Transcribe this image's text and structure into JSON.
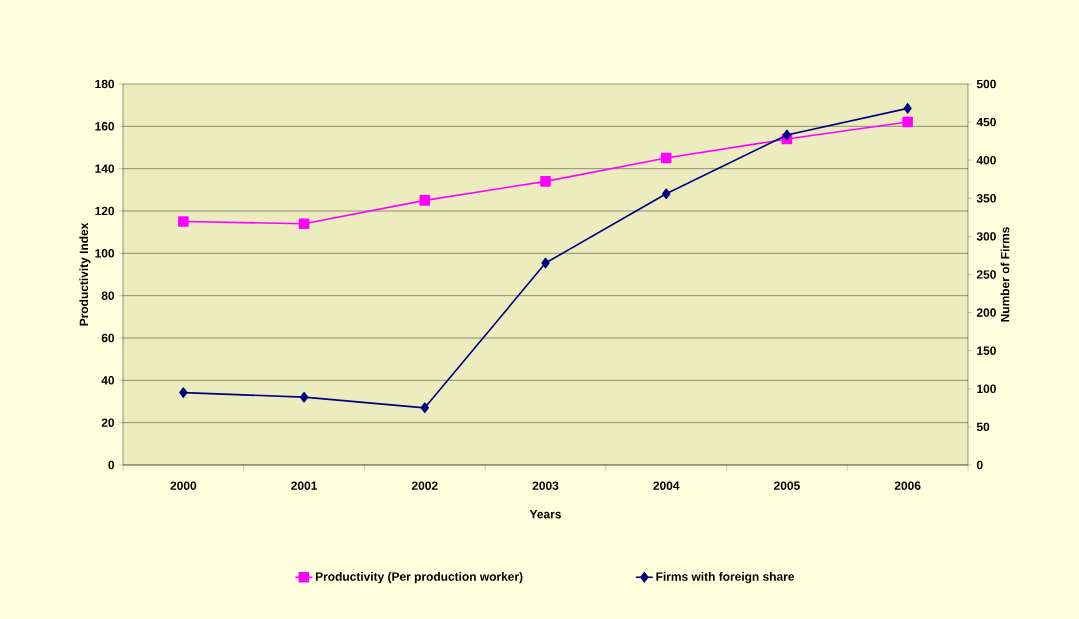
{
  "chart_data": {
    "type": "line",
    "xlabel": "Years",
    "ylabel": "Productivity Index",
    "y2label": "Number of Firms",
    "categories": [
      "2000",
      "2001",
      "2002",
      "2003",
      "2004",
      "2005",
      "2006"
    ],
    "series": [
      {
        "name": "Productivity (Per production worker)",
        "color": "#ff00ff",
        "marker": "square",
        "values": [
          115,
          114,
          125,
          134,
          145,
          154,
          162
        ]
      },
      {
        "name": "Firms with foreign share",
        "color": "#000080",
        "marker": "diamond",
        "axis": "y2",
        "values": [
          95,
          89,
          75,
          265,
          356,
          433,
          468
        ]
      }
    ],
    "ylim": [
      0,
      180
    ],
    "yticks": [
      0,
      20,
      40,
      60,
      80,
      100,
      120,
      140,
      160,
      180
    ],
    "y2lim": [
      0,
      500
    ],
    "y2ticks": [
      0,
      50,
      100,
      150,
      200,
      250,
      300,
      350,
      400,
      450,
      500
    ],
    "grid": "y",
    "legend": "bottom"
  }
}
